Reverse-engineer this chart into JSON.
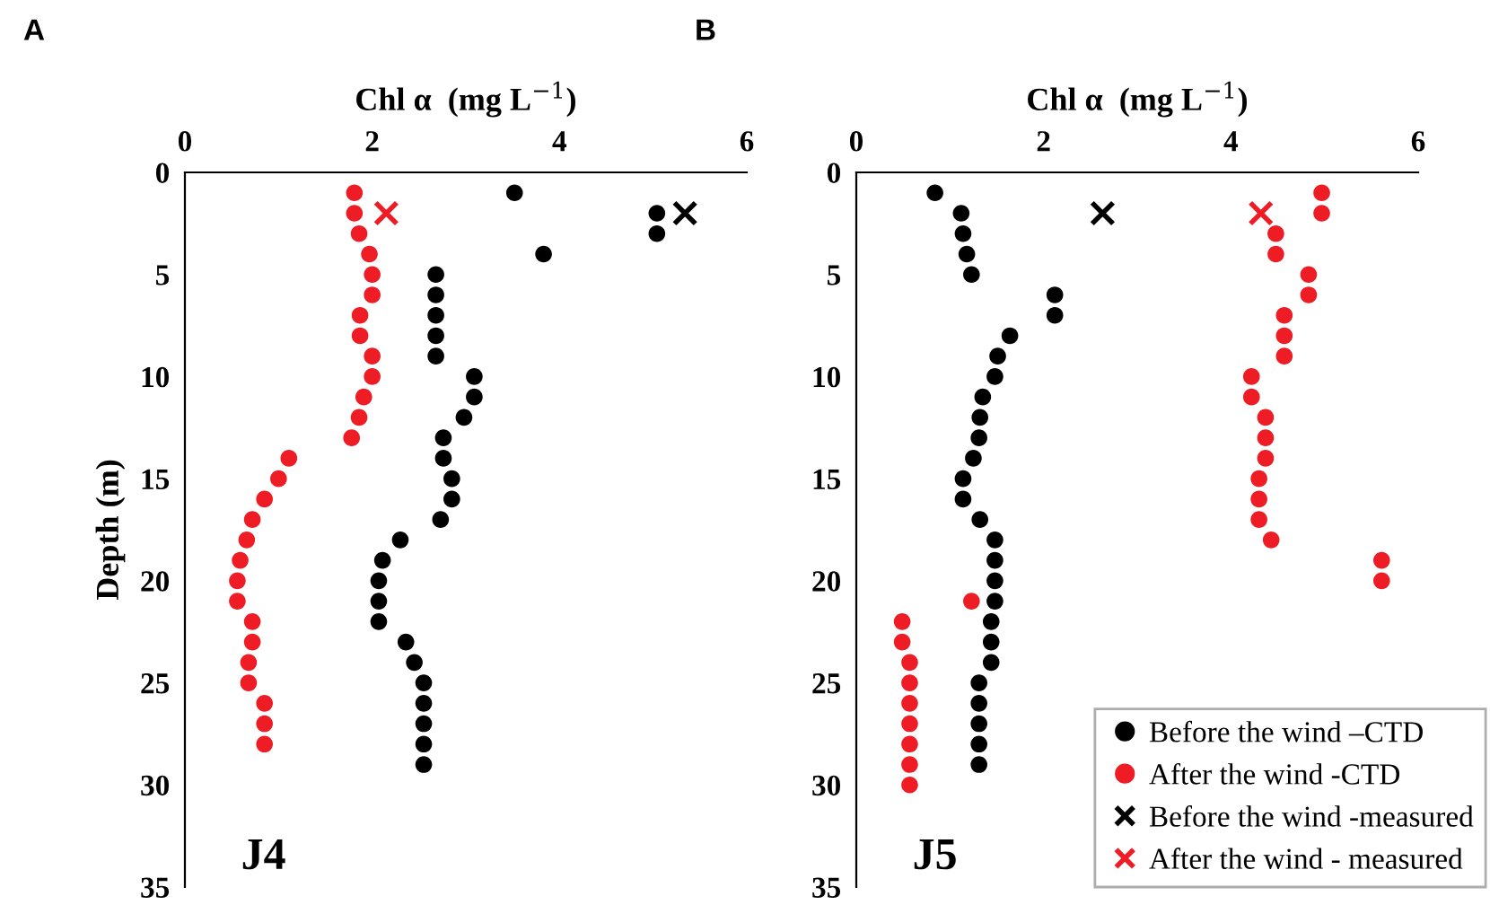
{
  "chart_data": [
    {
      "type": "scatter",
      "xlabel": "Chl α  (mg L$^{−1}$)",
      "ylabel": "Depth (m)",
      "annotations": [
        "A",
        "J4"
      ],
      "xlim": [
        0,
        6
      ],
      "xticks": [
        0,
        2,
        4,
        6
      ],
      "ylim": [
        35,
        0
      ],
      "yticks": [
        0,
        5,
        10,
        15,
        20,
        25,
        30,
        35
      ],
      "grid": false,
      "legend": false,
      "series": [
        {
          "color": "#000000",
          "marker": "circle",
          "x": [
            3.52,
            5.04,
            5.04,
            3.83,
            2.68,
            2.68,
            2.68,
            2.68,
            2.68,
            3.09,
            3.09,
            2.98,
            2.76,
            2.76,
            2.85,
            2.85,
            2.73,
            2.3,
            2.11,
            2.07,
            2.07,
            2.07,
            2.36,
            2.45,
            2.55,
            2.55,
            2.55,
            2.55,
            2.55
          ],
          "values": [
            1,
            2,
            3,
            4,
            5,
            6,
            7,
            8,
            9,
            10,
            11,
            12,
            13,
            14,
            15,
            16,
            17,
            18,
            19,
            20,
            21,
            22,
            23,
            24,
            25,
            26,
            27,
            28,
            29
          ]
        },
        {
          "color": "#ee1c25",
          "marker": "circle",
          "x": [
            1.81,
            1.81,
            1.86,
            1.97,
            2.0,
            2.0,
            1.87,
            1.87,
            2.0,
            2.0,
            1.91,
            1.86,
            1.78,
            1.11,
            1.0,
            0.85,
            0.72,
            0.66,
            0.59,
            0.56,
            0.56,
            0.72,
            0.72,
            0.68,
            0.68,
            0.85,
            0.85,
            0.85
          ],
          "values": [
            1,
            2,
            3,
            4,
            5,
            6,
            7,
            8,
            9,
            10,
            11,
            12,
            13,
            14,
            15,
            16,
            17,
            18,
            19,
            20,
            21,
            22,
            23,
            24,
            25,
            26,
            27,
            28
          ]
        },
        {
          "color": "#000000",
          "marker": "cross",
          "x": [
            5.34
          ],
          "values": [
            2
          ]
        },
        {
          "color": "#ee1c25",
          "marker": "cross",
          "x": [
            2.15
          ],
          "values": [
            2
          ]
        }
      ]
    },
    {
      "type": "scatter",
      "xlabel": "Chl α  (mg L$^{−1}$)",
      "annotations": [
        "B",
        "J5"
      ],
      "xlim": [
        0,
        6
      ],
      "xticks": [
        0,
        2,
        4,
        6
      ],
      "ylim": [
        35,
        0
      ],
      "yticks": [
        0,
        5,
        10,
        15,
        20,
        25,
        30,
        35
      ],
      "grid": false,
      "legend": "bottom right",
      "series": [
        {
          "name": "Before the wind –CTD",
          "color": "#000000",
          "marker": "circle",
          "x": [
            0.84,
            1.12,
            1.14,
            1.18,
            1.23,
            2.12,
            2.12,
            1.64,
            1.51,
            1.48,
            1.35,
            1.32,
            1.31,
            1.25,
            1.14,
            1.14,
            1.32,
            1.48,
            1.48,
            1.48,
            1.48,
            1.44,
            1.44,
            1.44,
            1.31,
            1.31,
            1.31,
            1.31,
            1.31
          ],
          "values": [
            1,
            2,
            3,
            4,
            5,
            6,
            7,
            8,
            9,
            10,
            11,
            12,
            13,
            14,
            15,
            16,
            17,
            18,
            19,
            20,
            21,
            22,
            23,
            24,
            25,
            26,
            27,
            28,
            29
          ]
        },
        {
          "name": "After the wind -CTD",
          "color": "#ee1c25",
          "marker": "circle",
          "x": [
            4.97,
            4.97,
            4.48,
            4.48,
            4.83,
            4.83,
            4.57,
            4.57,
            4.57,
            4.22,
            4.22,
            4.37,
            4.37,
            4.37,
            4.3,
            4.3,
            4.3,
            4.43,
            5.61,
            5.61,
            1.23,
            0.49,
            0.49,
            0.57,
            0.57,
            0.57,
            0.57,
            0.57,
            0.57,
            0.57
          ],
          "values": [
            1,
            2,
            3,
            4,
            5,
            6,
            7,
            8,
            9,
            10,
            11,
            12,
            13,
            14,
            15,
            16,
            17,
            18,
            19,
            20,
            21,
            22,
            23,
            24,
            25,
            26,
            27,
            28,
            29,
            30
          ]
        },
        {
          "name": "Before the wind -measured",
          "color": "#000000",
          "marker": "cross",
          "x": [
            2.63
          ],
          "values": [
            2
          ]
        },
        {
          "name": "After the wind - measured",
          "color": "#ee1c25",
          "marker": "cross",
          "x": [
            4.32
          ],
          "values": [
            2
          ]
        }
      ]
    }
  ]
}
